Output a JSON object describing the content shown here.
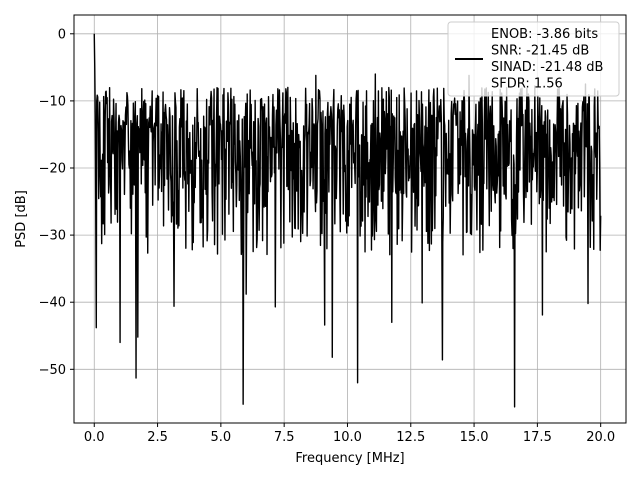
{
  "chart_data": {
    "type": "line",
    "title": "",
    "xlabel": "Frequency [MHz]",
    "ylabel": "PSD [dB]",
    "xlim": [
      -0.8,
      21.0
    ],
    "ylim": [
      -58.0,
      2.8
    ],
    "grid": true,
    "xticks": [
      0.0,
      2.5,
      5.0,
      7.5,
      10.0,
      12.5,
      15.0,
      17.5,
      20.0
    ],
    "xtick_labels": [
      "0.0",
      "2.5",
      "5.0",
      "7.5",
      "10.0",
      "12.5",
      "15.0",
      "17.5",
      "20.0"
    ],
    "yticks": [
      0,
      -10,
      -20,
      -30,
      -40,
      -50
    ],
    "ytick_labels": [
      "0",
      "−10",
      "−20",
      "−30",
      "−40",
      "−50"
    ],
    "legend_position": "top-right",
    "legend_lines": [
      "ENOB: -3.86 bits",
      "SNR: -21.45 dB",
      "SINAD: -21.48 dB",
      "SFDR: 1.56"
    ],
    "series_color": "#000000",
    "grid_color": "#b0b0b0",
    "series": [
      {
        "name": "",
        "x_start": 0.0,
        "x_end": 20.0,
        "points_count": 1024,
        "noise_floor_mean": -18,
        "noise_upper": -8,
        "noise_lower": -33,
        "notable_points": [
          {
            "x": 0.0,
            "y": 0.0
          },
          {
            "x": 0.02,
            "y": -5.0
          },
          {
            "x": 0.05,
            "y": -19.0
          },
          {
            "x": 0.08,
            "y": -43.8
          },
          {
            "x": 1.02,
            "y": -46.0
          },
          {
            "x": 1.65,
            "y": -51.3
          },
          {
            "x": 1.72,
            "y": -45.2
          },
          {
            "x": 3.15,
            "y": -40.6
          },
          {
            "x": 5.88,
            "y": -55.2
          },
          {
            "x": 6.0,
            "y": -38.8
          },
          {
            "x": 7.15,
            "y": -40.7
          },
          {
            "x": 9.1,
            "y": -43.4
          },
          {
            "x": 9.4,
            "y": -48.2
          },
          {
            "x": 10.4,
            "y": -52.0
          },
          {
            "x": 11.75,
            "y": -43.0
          },
          {
            "x": 12.95,
            "y": -40.1
          },
          {
            "x": 13.75,
            "y": -48.6
          },
          {
            "x": 16.6,
            "y": -55.6
          },
          {
            "x": 17.7,
            "y": -41.9
          },
          {
            "x": 19.5,
            "y": -40.2
          },
          {
            "x": 7.25,
            "y": -8.2
          },
          {
            "x": 8.75,
            "y": -6.2
          },
          {
            "x": 11.1,
            "y": -6.0
          },
          {
            "x": 14.8,
            "y": -6.2
          },
          {
            "x": 17.4,
            "y": -7.8
          },
          {
            "x": 19.4,
            "y": -7.5
          }
        ]
      }
    ]
  }
}
